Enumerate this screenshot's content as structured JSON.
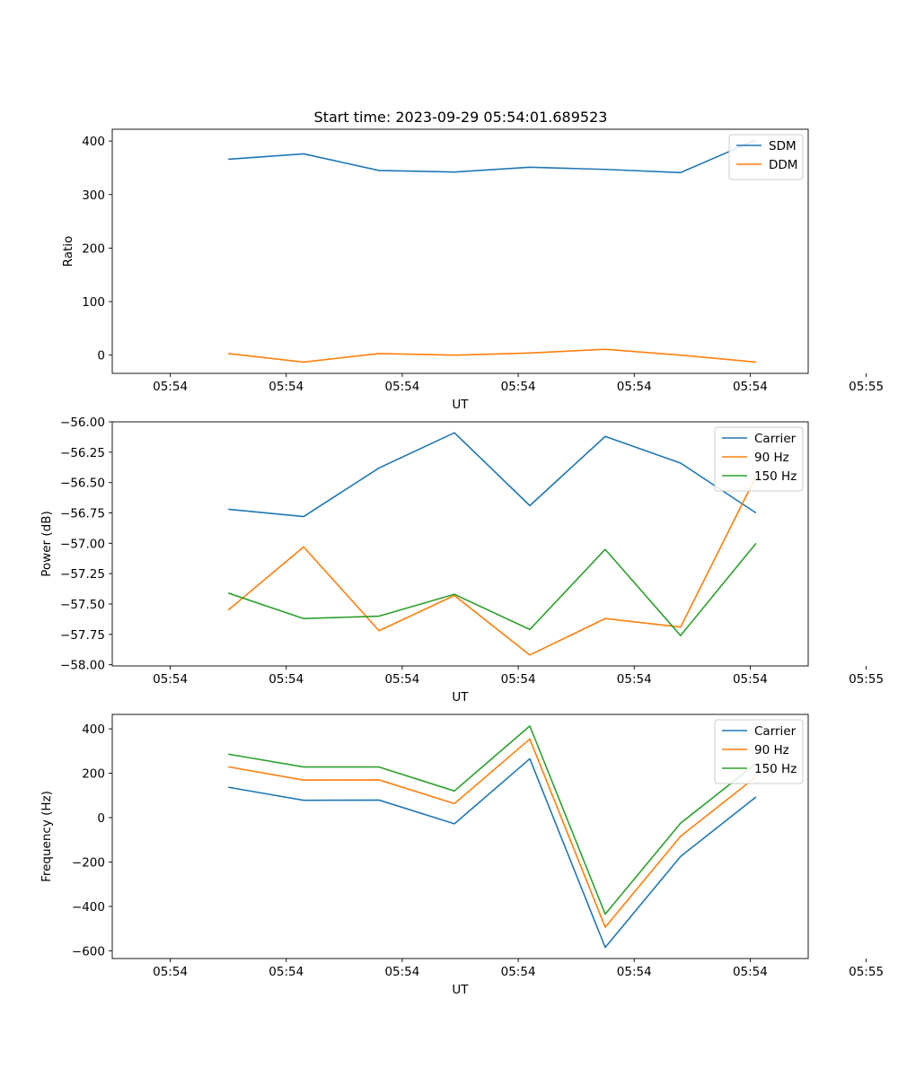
{
  "figure": {
    "title": "Start time: 2023-09-29 05:54:01.689523"
  },
  "chart_data": [
    {
      "type": "line",
      "title": "Start time: 2023-09-29 05:54:01.689523",
      "xlabel": "UT",
      "ylabel": "Ratio",
      "xlim": [
        -0.5,
        5.5
      ],
      "ylim": [
        -34,
        422
      ],
      "x_ticks": [
        0,
        1,
        2,
        3,
        4,
        5,
        6
      ],
      "x_tick_labels": [
        "05:54",
        "05:54",
        "05:54",
        "05:54",
        "05:54",
        "05:54",
        "05:55"
      ],
      "y_ticks": [
        0,
        100,
        200,
        300,
        400
      ],
      "y_tick_labels": [
        "0",
        "100",
        "200",
        "300",
        "400"
      ],
      "x": [
        0.5,
        1.15,
        1.8,
        2.45,
        3.1,
        3.75,
        4.4,
        5.05
      ],
      "series": [
        {
          "name": "SDM",
          "color": "#1f77b4",
          "values": [
            366,
            376,
            345,
            342,
            351,
            347,
            341,
            402
          ]
        },
        {
          "name": "DDM",
          "color": "#ff7f0e",
          "values": [
            3,
            -13,
            3,
            0,
            4,
            11,
            0,
            -13
          ]
        }
      ],
      "legend": "upper right"
    },
    {
      "type": "line",
      "title": "",
      "xlabel": "UT",
      "ylabel": "Power (dB)",
      "xlim": [
        -0.5,
        5.5
      ],
      "ylim": [
        -58.01,
        -56.0
      ],
      "x_ticks": [
        0,
        1,
        2,
        3,
        4,
        5,
        6
      ],
      "x_tick_labels": [
        "05:54",
        "05:54",
        "05:54",
        "05:54",
        "05:54",
        "05:54",
        "05:55"
      ],
      "y_ticks": [
        -58.0,
        -57.75,
        -57.5,
        -57.25,
        -57.0,
        -56.75,
        -56.5,
        -56.25,
        -56.0
      ],
      "y_tick_labels": [
        "−58.00",
        "−57.75",
        "−57.50",
        "−57.25",
        "−57.00",
        "−56.75",
        "−56.50",
        "−56.25",
        "−56.00"
      ],
      "x": [
        0.5,
        1.15,
        1.8,
        2.45,
        3.1,
        3.75,
        4.4,
        5.05
      ],
      "series": [
        {
          "name": "Carrier",
          "color": "#1f77b4",
          "values": [
            -56.72,
            -56.78,
            -56.38,
            -56.09,
            -56.69,
            -56.12,
            -56.34,
            -56.75
          ]
        },
        {
          "name": "90 Hz",
          "color": "#ff7f0e",
          "values": [
            -57.55,
            -57.03,
            -57.72,
            -57.43,
            -57.92,
            -57.62,
            -57.69,
            -56.45
          ]
        },
        {
          "name": "150 Hz",
          "color": "#2ca02c",
          "values": [
            -57.41,
            -57.62,
            -57.6,
            -57.42,
            -57.71,
            -57.05,
            -57.76,
            -57.0
          ]
        }
      ],
      "legend": "upper right"
    },
    {
      "type": "line",
      "title": "",
      "xlabel": "UT",
      "ylabel": "Frequency (Hz)",
      "xlim": [
        -0.5,
        5.5
      ],
      "ylim": [
        -635,
        465
      ],
      "x_ticks": [
        0,
        1,
        2,
        3,
        4,
        5,
        6
      ],
      "x_tick_labels": [
        "05:54",
        "05:54",
        "05:54",
        "05:54",
        "05:54",
        "05:54",
        "05:55"
      ],
      "y_ticks": [
        -600,
        -400,
        -200,
        0,
        200,
        400
      ],
      "y_tick_labels": [
        "−600",
        "−400",
        "−200",
        "0",
        "200",
        "400"
      ],
      "x": [
        0.5,
        1.15,
        1.8,
        2.45,
        3.1,
        3.75,
        4.4,
        5.05
      ],
      "series": [
        {
          "name": "Carrier",
          "color": "#1f77b4",
          "values": [
            137,
            78,
            79,
            -28,
            265,
            -585,
            -175,
            93
          ]
        },
        {
          "name": "90 Hz",
          "color": "#ff7f0e",
          "values": [
            229,
            169,
            170,
            63,
            354,
            -494,
            -84,
            184
          ]
        },
        {
          "name": "150 Hz",
          "color": "#2ca02c",
          "values": [
            286,
            228,
            228,
            120,
            413,
            -435,
            -25,
            243
          ]
        }
      ],
      "legend": "upper right"
    }
  ]
}
